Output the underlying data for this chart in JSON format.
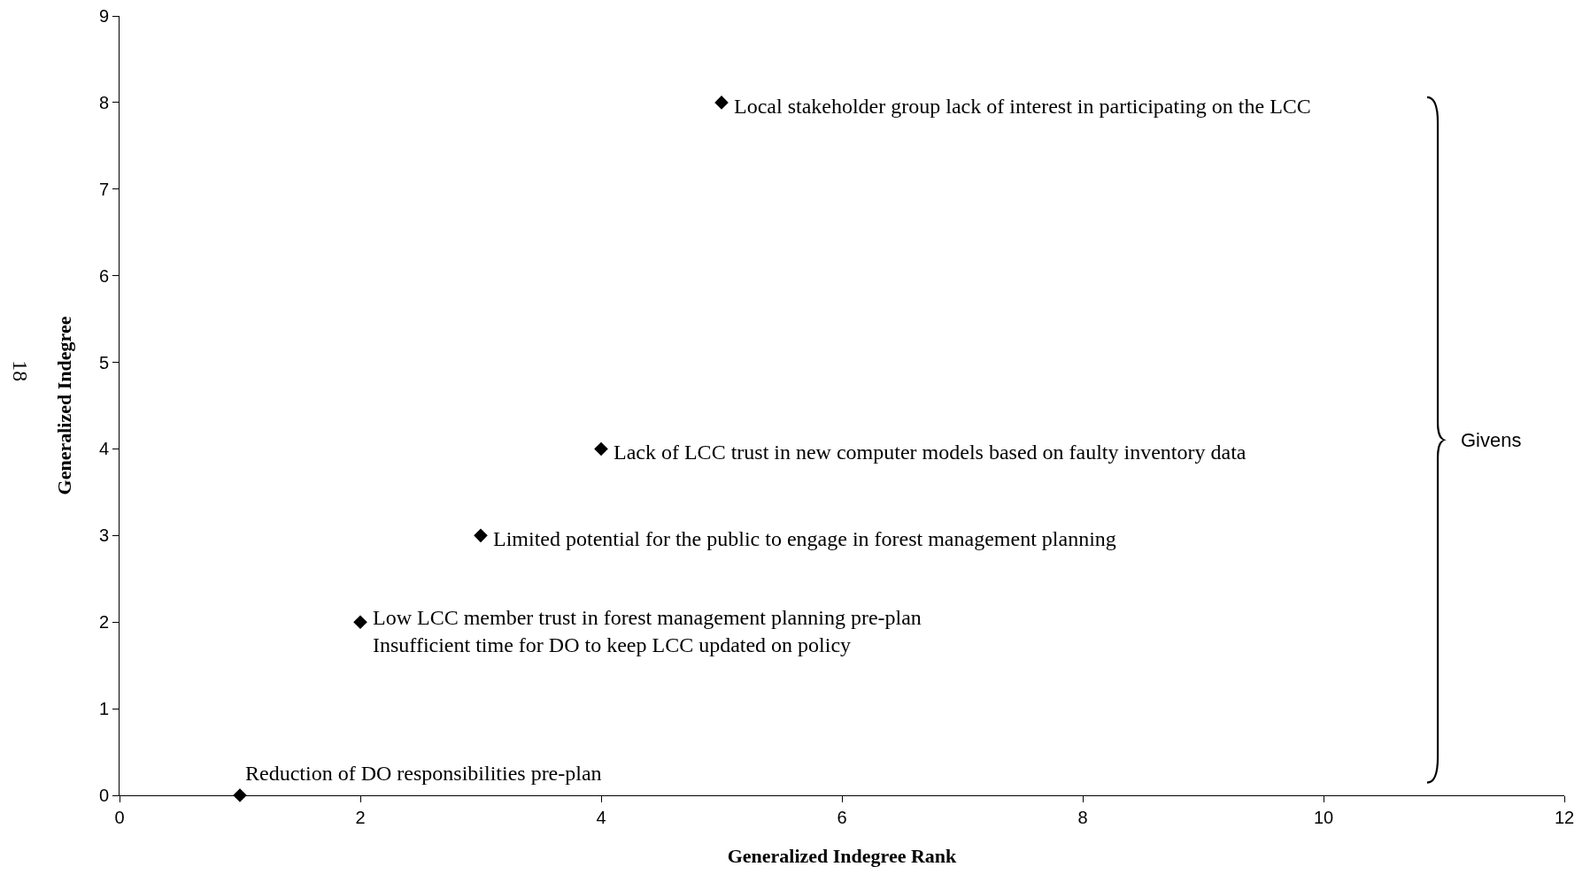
{
  "chart_data": {
    "type": "scatter",
    "xlabel": "Generalized Indegree Rank",
    "ylabel": "Generalized Indegree",
    "x": [
      1,
      2,
      3,
      4,
      5
    ],
    "values": [
      0,
      2,
      3,
      4,
      8
    ],
    "color": "#000000",
    "marker": "diamond",
    "xlim": [
      0,
      12
    ],
    "xticks": [
      0,
      2,
      4,
      6,
      8,
      10,
      12
    ],
    "ylim": [
      0,
      9
    ],
    "yticks": [
      0,
      1,
      2,
      3,
      4,
      5,
      6,
      7,
      8,
      9
    ],
    "annotations": [
      {
        "text": "Reduction of DO responsibilities pre-plan",
        "x": 1,
        "y": 0
      },
      {
        "text": "Low LCC member trust in forest management planning pre-plan\nInsufficient time for DO to keep LCC updated on policy",
        "x": 2,
        "y": 2
      },
      {
        "text": "Limited potential for the public to engage in forest management planning",
        "x": 3,
        "y": 3
      },
      {
        "text": "Lack of LCC trust in new computer models based on faulty inventory data",
        "x": 4,
        "y": 4
      },
      {
        "text": "Local stakeholder group lack of interest in participating on the LCC",
        "x": 5,
        "y": 8
      },
      "Givens",
      "18"
    ]
  }
}
